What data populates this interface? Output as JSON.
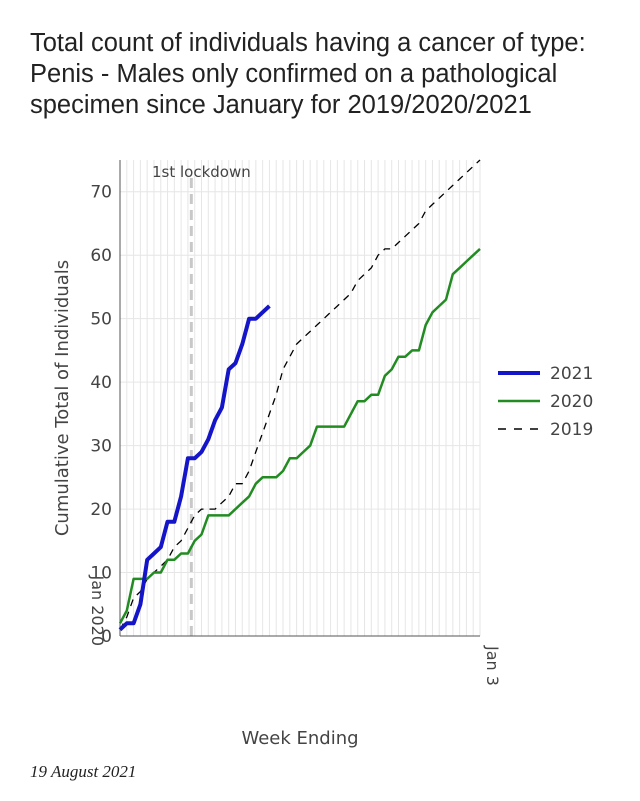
{
  "chart_data": {
    "type": "line",
    "title": "Total count of individuals having a cancer of type: Penis - Males only confirmed on a pathological specimen since January for 2019/2020/2021",
    "xlabel": "Week Ending",
    "ylabel": "Cumulative Total of Individuals",
    "x_range_weeks": [
      0,
      53
    ],
    "ylim": [
      0,
      75
    ],
    "yticks": [
      0,
      10,
      20,
      30,
      40,
      50,
      60,
      70
    ],
    "x_tick_label_start": "Jan 2020",
    "x_tick_label_end": "Jan 3",
    "grid": true,
    "legend_position": "right",
    "annotations": [
      {
        "text": "1st lockdown",
        "x_week": 10.5
      }
    ],
    "series": [
      {
        "name": "2021",
        "color": "#1414c8",
        "style": "solid-thick",
        "x": [
          0,
          1,
          2,
          3,
          4,
          5,
          6,
          7,
          8,
          9,
          10,
          11,
          12,
          13,
          14,
          15,
          16,
          17,
          18,
          19,
          20,
          21,
          22
        ],
        "values": [
          1,
          2,
          2,
          5,
          12,
          13,
          14,
          18,
          18,
          22,
          28,
          28,
          29,
          31,
          34,
          36,
          42,
          43,
          46,
          50,
          50,
          51,
          52
        ]
      },
      {
        "name": "2020",
        "color": "#228b22",
        "style": "solid",
        "x": [
          0,
          1,
          2,
          3,
          4,
          5,
          6,
          7,
          8,
          9,
          10,
          11,
          12,
          13,
          14,
          15,
          16,
          17,
          18,
          19,
          20,
          21,
          22,
          23,
          24,
          25,
          26,
          27,
          28,
          29,
          30,
          31,
          32,
          33,
          34,
          35,
          36,
          37,
          38,
          39,
          40,
          41,
          42,
          43,
          44,
          45,
          46,
          47,
          48,
          49,
          50,
          51,
          52,
          53
        ],
        "values": [
          2,
          4,
          9,
          9,
          9,
          10,
          10,
          12,
          12,
          13,
          13,
          15,
          16,
          19,
          19,
          19,
          19,
          20,
          21,
          22,
          24,
          25,
          25,
          25,
          26,
          28,
          28,
          29,
          30,
          33,
          33,
          33,
          33,
          33,
          35,
          37,
          37,
          38,
          38,
          41,
          42,
          44,
          44,
          45,
          45,
          49,
          51,
          52,
          53,
          57,
          58,
          59,
          60,
          61
        ]
      },
      {
        "name": "2019",
        "color": "#000000",
        "style": "dashed",
        "x": [
          0,
          1,
          2,
          3,
          4,
          5,
          6,
          7,
          8,
          9,
          10,
          11,
          12,
          13,
          14,
          15,
          16,
          17,
          18,
          19,
          20,
          21,
          22,
          23,
          24,
          25,
          26,
          27,
          28,
          29,
          30,
          31,
          32,
          33,
          34,
          35,
          36,
          37,
          38,
          39,
          40,
          41,
          42,
          43,
          44,
          45,
          46,
          47,
          48,
          49,
          50,
          51,
          52,
          53
        ],
        "values": [
          1,
          3,
          6,
          7,
          9,
          10,
          11,
          12,
          14,
          15,
          17,
          19,
          20,
          20,
          20,
          21,
          22,
          24,
          24,
          26,
          29,
          32,
          35,
          38,
          42,
          44,
          46,
          47,
          48,
          49,
          50,
          51,
          52,
          53,
          54,
          56,
          57,
          58,
          60,
          61,
          61,
          62,
          63,
          64,
          65,
          67,
          68,
          69,
          70,
          71,
          72,
          73,
          74,
          75
        ]
      }
    ]
  },
  "footnote": "19 August 2021"
}
